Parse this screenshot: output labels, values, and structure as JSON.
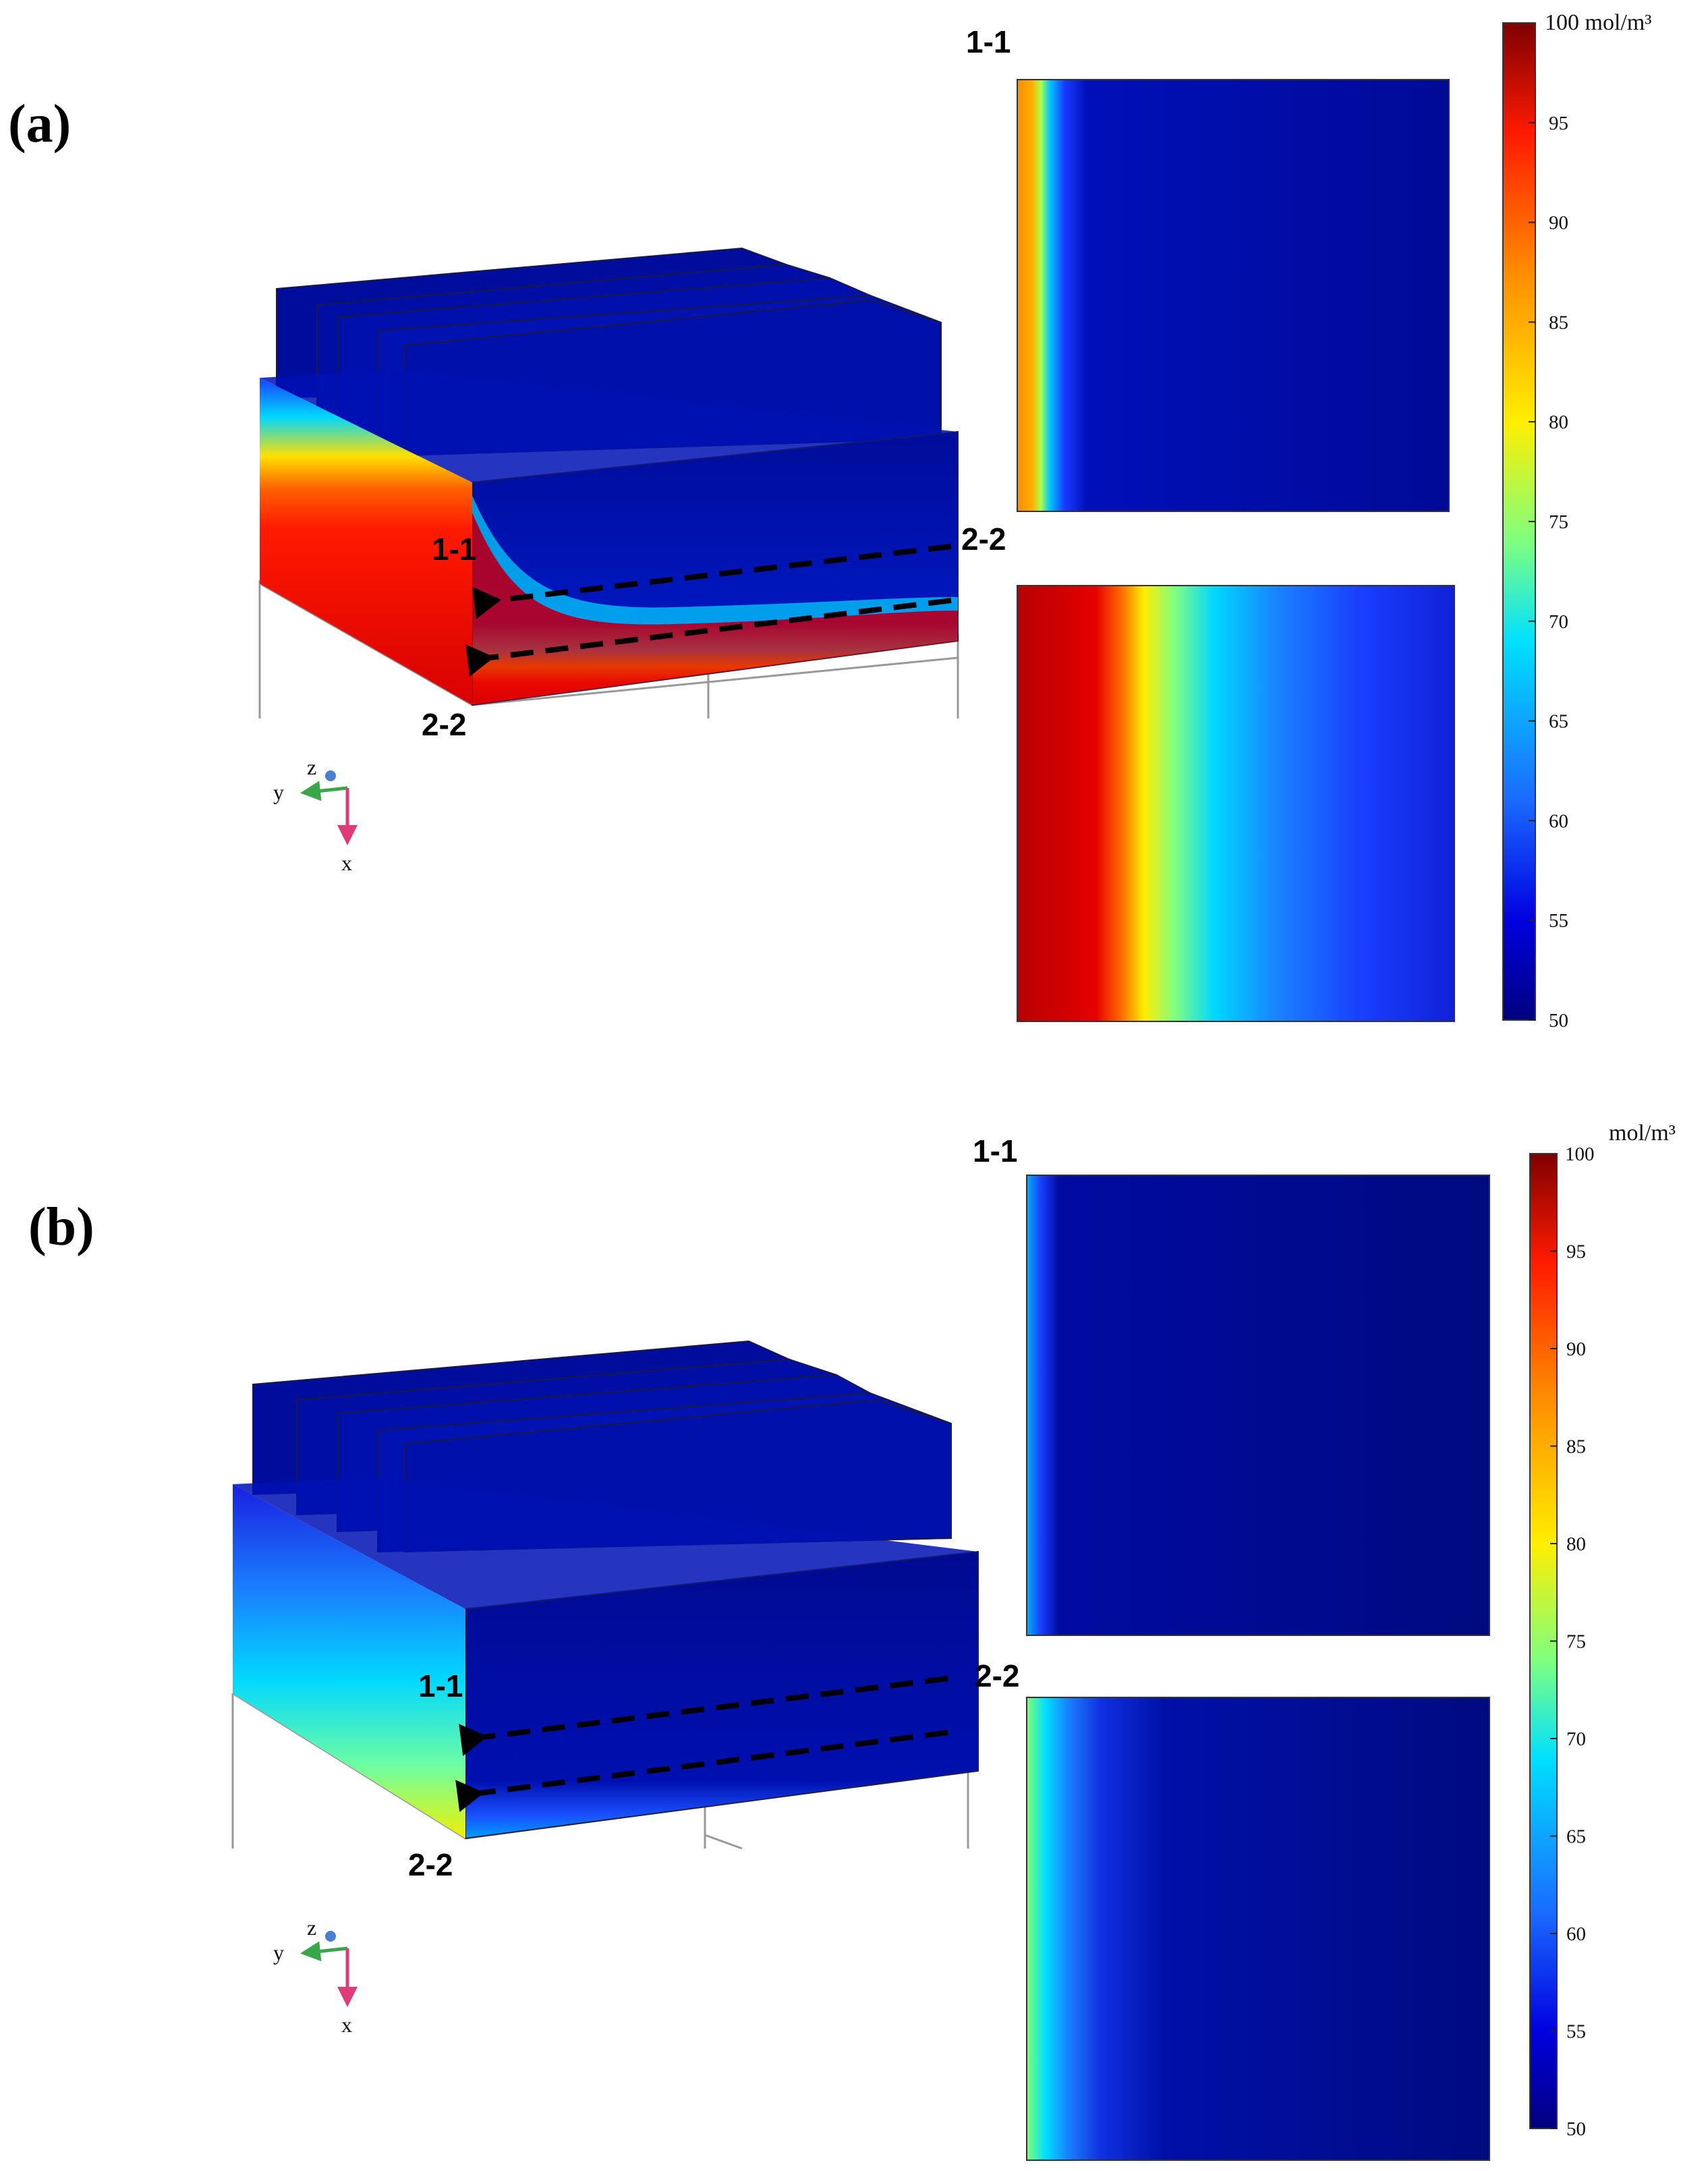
{
  "figure": {
    "panels": [
      {
        "label": "(a)",
        "section_1_label": "1-1",
        "section_2_label": "2-2",
        "model_label_1": "1-1",
        "model_label_2_right": "2-2",
        "model_label_2_bottom": "2-2",
        "colorbar": {
          "top_label": "100 mol/m³",
          "unit": "",
          "ticks": [
            "95",
            "90",
            "85",
            "80",
            "75",
            "70",
            "65",
            "60",
            "55",
            "50"
          ]
        },
        "axes_triad": {
          "z": "z",
          "y": "y",
          "x": "x"
        }
      },
      {
        "label": "(b)",
        "section_1_label": "1-1",
        "section_2_label": "2-2",
        "model_label_1": "1-1",
        "model_label_2_right": "2-2",
        "model_label_2_bottom": "2-2",
        "colorbar": {
          "top_label": "100",
          "unit": "mol/m³",
          "ticks": [
            "95",
            "90",
            "85",
            "80",
            "75",
            "70",
            "65",
            "60",
            "55",
            "50"
          ]
        },
        "axes_triad": {
          "z": "z",
          "y": "y",
          "x": "x"
        }
      }
    ],
    "colors": {
      "jet_dark_red": "#7f0000",
      "jet_red": "#ff1a00",
      "jet_orange": "#ff8c00",
      "jet_yellow": "#ffee00",
      "jet_cyan": "#00e0ff",
      "jet_blue": "#1a2aff",
      "jet_dark_blue": "#00007f",
      "axis_green": "#3aa64a",
      "axis_pink": "#e03a78",
      "axis_blue_dot": "#4a7fd0"
    }
  }
}
